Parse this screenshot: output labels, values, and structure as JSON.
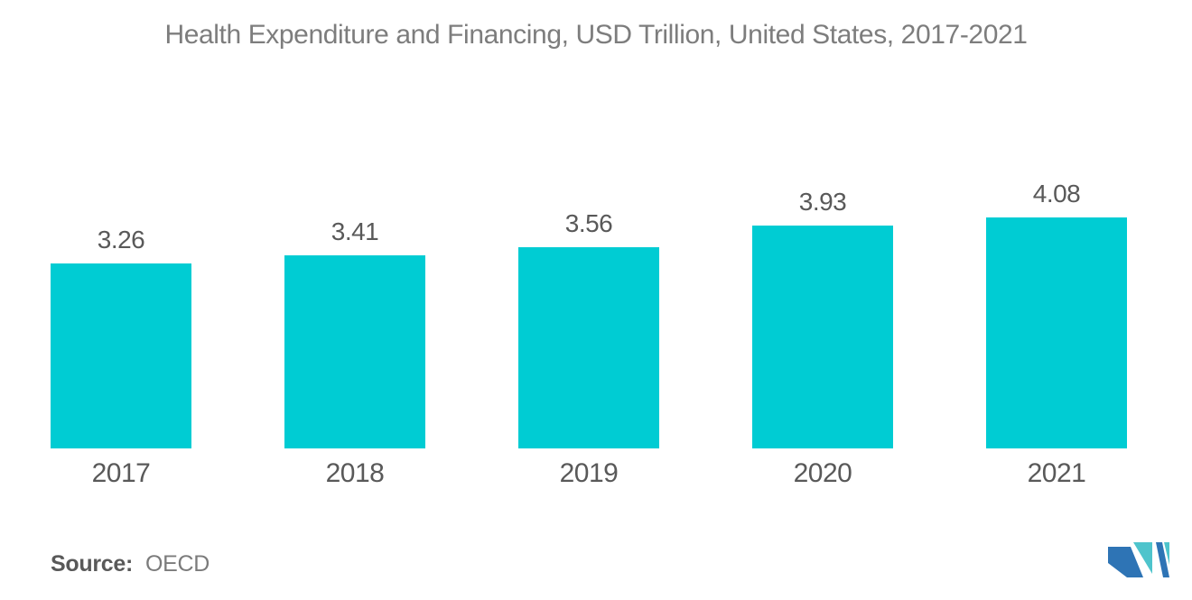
{
  "page": {
    "background": "#FFFFFF"
  },
  "chart_data": {
    "type": "bar",
    "title": "Health Expenditure and Financing, USD Trillion, United States, 2017-2021",
    "categories": [
      "2017",
      "2018",
      "2019",
      "2020",
      "2021"
    ],
    "values": [
      3.26,
      3.41,
      3.56,
      3.93,
      4.08
    ],
    "value_labels": [
      "3.26",
      "3.41",
      "3.56",
      "3.93",
      "4.08"
    ],
    "series_name": "Health Expenditure and Financing (USD Trillion)",
    "xlabel": "",
    "ylabel": "",
    "ylim": [
      0,
      4.08
    ],
    "grid": false,
    "legend": "none",
    "axes_drawn": false,
    "data_labels_position": "above-bars",
    "bar_color": "#00CCD3",
    "value_label_color": "#595959",
    "axis_label_color": "#595959",
    "title_color": "#7D7D7D"
  },
  "footer": {
    "source_label": "Source:",
    "source_value": "OECD"
  },
  "logo": {
    "name": "mordor-intelligence-logo",
    "blue": "#2E74B5",
    "teal": "#4EC4CC"
  }
}
